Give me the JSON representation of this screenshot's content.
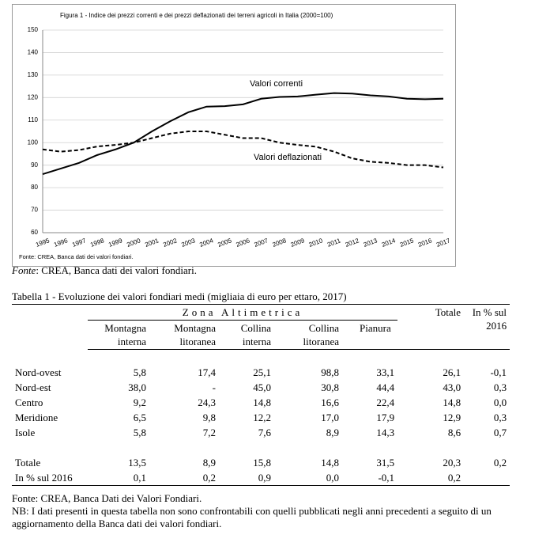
{
  "chart_data": {
    "type": "line",
    "title": "Figura 1 -  Indice dei prezzi correnti e dei prezzi deflazionati dei terreni agricoli in Italia (2000=100)",
    "source": "Fonte: CREA, Banca dati dei valori fondiari.",
    "categories": [
      "1995",
      "1996",
      "1997",
      "1998",
      "1999",
      "2000",
      "2001",
      "2002",
      "2003",
      "2004",
      "2005",
      "2006",
      "2007",
      "2008",
      "2009",
      "2010",
      "2011",
      "2012",
      "2013",
      "2014",
      "2015",
      "2016",
      "2017"
    ],
    "series": [
      {
        "name": "Valori correnti",
        "color": "#000000",
        "line_style": "solid",
        "values": [
          86,
          88.5,
          91,
          94.5,
          97,
          100,
          105,
          109.5,
          113.5,
          116,
          116.2,
          117,
          119.5,
          120.3,
          120.5,
          121.3,
          122,
          121.8,
          121,
          120.5,
          119.5,
          119.3,
          119.5
        ]
      },
      {
        "name": "Valori deflazionati",
        "color": "#000000",
        "line_style": "dashed",
        "values": [
          97,
          96,
          96.7,
          98.3,
          99,
          100,
          102,
          104,
          105,
          105,
          103.5,
          102,
          102,
          100,
          99,
          98.2,
          96,
          93,
          91.5,
          91,
          90,
          90,
          89
        ]
      }
    ],
    "ylim": [
      60,
      150
    ],
    "yticks": [
      60,
      70,
      80,
      90,
      100,
      110,
      120,
      130,
      140,
      150
    ],
    "grid": true
  },
  "figure_source": {
    "label": "Fonte",
    "text": ": CREA, Banca dati dei valori fondiari."
  },
  "table": {
    "title": "Tabella 1 - Evoluzione dei valori fondiari medi (migliaia di euro per ettaro, 2017)",
    "group_header": "Zona Altimetrica",
    "columns": [
      "Montagna interna",
      "Montagna litoranea",
      "Collina interna",
      "Collina litoranea",
      "Pianura",
      "Totale",
      "In % sul 2016"
    ],
    "rows": [
      [
        "Nord-ovest",
        "5,8",
        "17,4",
        "25,1",
        "98,8",
        "33,1",
        "26,1",
        "-0,1"
      ],
      [
        "Nord-est",
        "38,0",
        "-",
        "45,0",
        "30,8",
        "44,4",
        "43,0",
        "0,3"
      ],
      [
        "Centro",
        "9,2",
        "24,3",
        "14,8",
        "16,6",
        "22,4",
        "14,8",
        "0,0"
      ],
      [
        "Meridione",
        "6,5",
        "9,8",
        "12,2",
        "17,0",
        "17,9",
        "12,9",
        "0,3"
      ],
      [
        "Isole",
        "5,8",
        "7,2",
        "7,6",
        "8,9",
        "14,3",
        "8,6",
        "0,7"
      ]
    ],
    "total_rows": [
      [
        "Totale",
        "13,5",
        "8,9",
        "15,8",
        "14,8",
        "31,5",
        "20,3",
        "0,2"
      ],
      [
        "In % sul 2016",
        "0,1",
        "0,2",
        "0,9",
        "0,0",
        "-0,1",
        "0,2",
        null
      ]
    ]
  },
  "notes": [
    "Fonte: CREA, Banca Dati dei Valori Fondiari.",
    "NB: I dati presenti in questa tabella non sono confrontabili con quelli pubblicati negli anni precedenti a seguito di un aggiornamento della Banca dati dei valori fondiari."
  ]
}
